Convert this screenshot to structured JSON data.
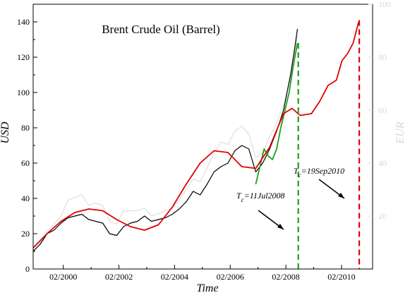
{
  "chart_data": {
    "type": "line",
    "title": "Brent Crude Oil (Barrel)",
    "xlabel": "Time",
    "ylabel": "USD",
    "ylabel_right": "EUR",
    "xlim": [
      1999.0,
      2011.2
    ],
    "ylim": [
      0,
      150
    ],
    "ylim_right": [
      0,
      100
    ],
    "x_ticks": [
      {
        "value": 2000.083,
        "label": "02/2000"
      },
      {
        "value": 2002.083,
        "label": "02/2002"
      },
      {
        "value": 2004.083,
        "label": "02/2004"
      },
      {
        "value": 2006.083,
        "label": "02/2006"
      },
      {
        "value": 2008.083,
        "label": "02/2008"
      },
      {
        "value": 2010.083,
        "label": "02/2010"
      }
    ],
    "y_ticks": [
      0,
      20,
      40,
      60,
      80,
      100,
      120,
      140
    ],
    "y_ticks_right": [
      20,
      40,
      60,
      80,
      100
    ],
    "grid": false,
    "legend": "none",
    "colors": {
      "usd": "#000000",
      "eur": "#d9d9d9",
      "fit_red": "#e00000",
      "fit_green": "#1e9e1e",
      "crash_green": "#1e9e1e",
      "crash_red": "#e00000"
    },
    "series": [
      {
        "key": "usd",
        "x": [
          1999.0,
          1999.25,
          1999.5,
          1999.75,
          2000.0,
          2000.25,
          2000.5,
          2000.75,
          2001.0,
          2001.25,
          2001.5,
          2001.75,
          2002.0,
          2002.25,
          2002.5,
          2002.75,
          2003.0,
          2003.25,
          2003.5,
          2003.75,
          2004.0,
          2004.25,
          2004.5,
          2004.75,
          2005.0,
          2005.25,
          2005.5,
          2005.75,
          2006.0,
          2006.25,
          2006.5,
          2006.75,
          2007.0,
          2007.25,
          2007.5,
          2007.75,
          2008.0,
          2008.25,
          2008.4,
          2008.5
        ],
        "y": [
          10,
          14,
          20,
          22,
          26,
          29,
          30,
          31,
          28,
          27,
          26,
          20,
          19,
          24,
          26,
          27,
          30,
          27,
          28,
          29,
          31,
          34,
          38,
          44,
          42,
          48,
          55,
          58,
          60,
          67,
          70,
          68,
          55,
          60,
          68,
          78,
          90,
          110,
          125,
          136
        ]
      },
      {
        "key": "eur",
        "x": [
          1999.0,
          1999.25,
          1999.5,
          1999.75,
          2000.0,
          2000.25,
          2000.5,
          2000.75,
          2001.0,
          2001.25,
          2001.5,
          2001.75,
          2002.0,
          2002.25,
          2002.5,
          2002.75,
          2003.0,
          2003.25,
          2003.5,
          2003.75,
          2004.0,
          2004.25,
          2004.5,
          2004.75,
          2005.0,
          2005.25,
          2005.5,
          2005.75,
          2006.0,
          2006.25,
          2006.5,
          2006.75,
          2007.0,
          2007.25,
          2007.5,
          2007.75,
          2008.0,
          2008.25,
          2008.4,
          2008.5
        ],
        "y": [
          7,
          10,
          14,
          17,
          20,
          26,
          27,
          28,
          24,
          25,
          24,
          18,
          17,
          22,
          22,
          22,
          23,
          20,
          21,
          22,
          23,
          26,
          30,
          34,
          33,
          38,
          44,
          48,
          47,
          52,
          54,
          51,
          42,
          44,
          50,
          55,
          62,
          72,
          82,
          88
        ]
      },
      {
        "key": "fit_red",
        "x": [
          1999.0,
          1999.5,
          2000.0,
          2000.5,
          2001.0,
          2001.5,
          2002.0,
          2002.5,
          2003.0,
          2003.5,
          2004.0,
          2004.5,
          2005.0,
          2005.5,
          2006.0,
          2006.5,
          2007.0,
          2007.5,
          2008.0,
          2008.3,
          2008.6,
          2009.0,
          2009.3,
          2009.6,
          2009.9,
          2010.1,
          2010.3,
          2010.5,
          2010.7
        ],
        "y": [
          12,
          20,
          27,
          32,
          34,
          33,
          28,
          24,
          22,
          25,
          35,
          48,
          60,
          67,
          66,
          58,
          57,
          69,
          88,
          91,
          87,
          88,
          95,
          104,
          107,
          118,
          122,
          128,
          140
        ]
      },
      {
        "key": "fit_green",
        "x": [
          2007.0,
          2007.15,
          2007.3,
          2007.45,
          2007.6,
          2007.75,
          2007.9,
          2008.05,
          2008.2,
          2008.35,
          2008.5
        ],
        "y": [
          48,
          58,
          68,
          64,
          62,
          68,
          80,
          90,
          100,
          115,
          128
        ]
      }
    ],
    "critical_times": [
      {
        "key": "crash_green",
        "x": 2008.53,
        "label": "T_c=11Jul2008"
      },
      {
        "key": "crash_red",
        "x": 2010.72,
        "label": "T_c=19Sep2010"
      }
    ]
  }
}
